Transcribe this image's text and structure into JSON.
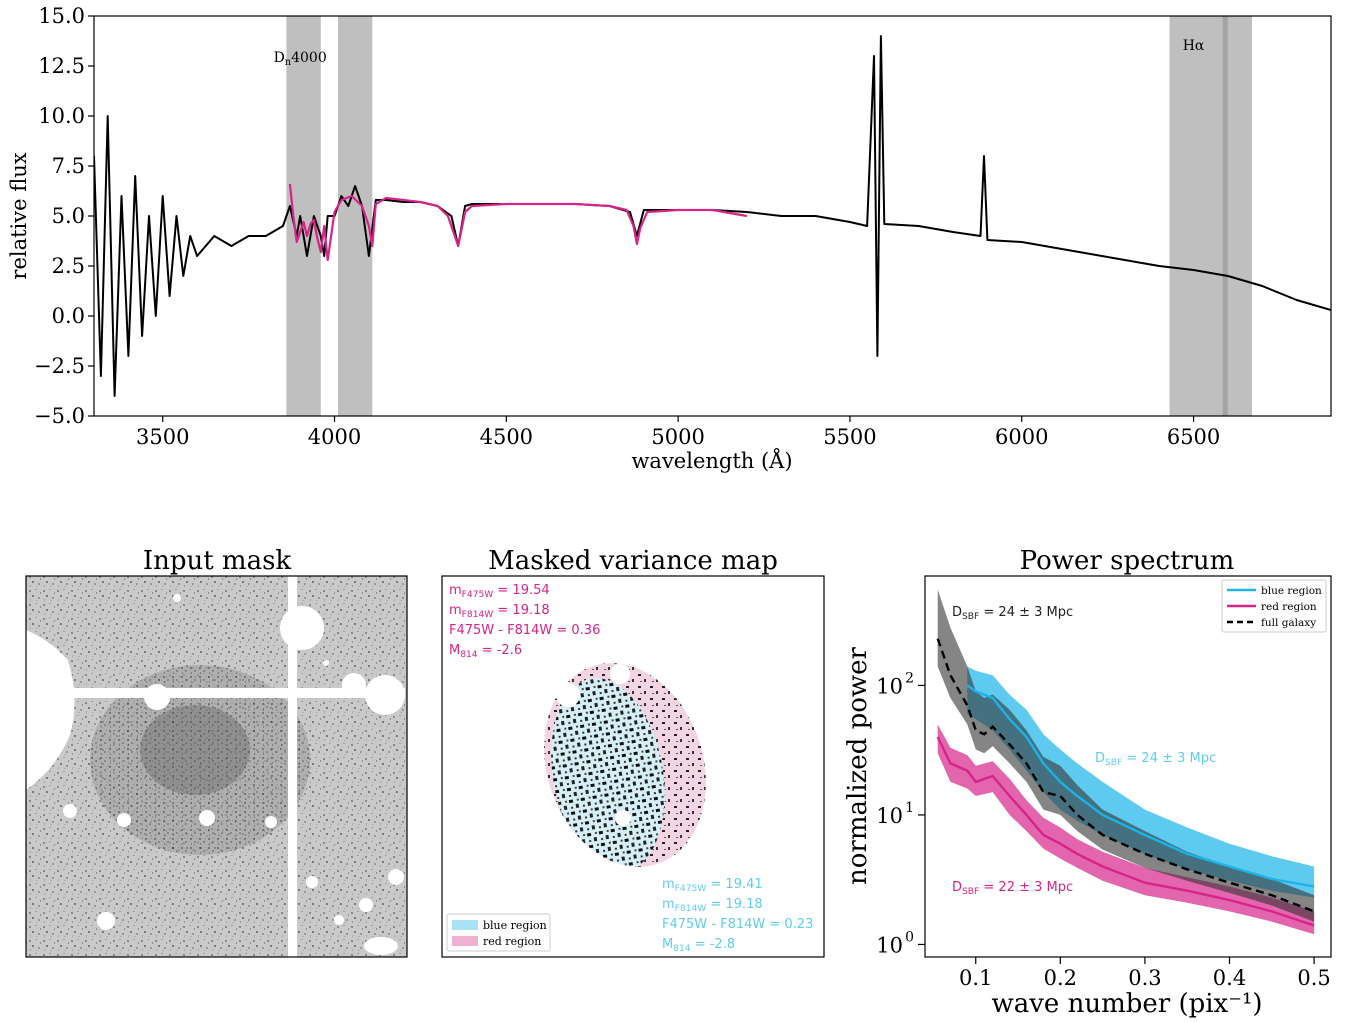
{
  "chart_data": [
    {
      "type": "line",
      "xlabel": "wavelength (Å)",
      "ylabel": "relative flux",
      "xlim": [
        3300,
        6900
      ],
      "ylim": [
        -5.0,
        15.0
      ],
      "xticks": [
        "3500",
        "4000",
        "4500",
        "5000",
        "5500",
        "6000",
        "6500"
      ],
      "yticks": [
        "−5.0",
        "−2.5",
        "0.0",
        "2.5",
        "5.0",
        "7.5",
        "10.0",
        "12.5",
        "15.0"
      ],
      "bands": [
        {
          "x0": 3860,
          "x1": 3960
        },
        {
          "x0": 4010,
          "x1": 4110
        },
        {
          "x0": 6430,
          "x1": 6670
        }
      ],
      "band_labels": [
        {
          "prefix": "D",
          "sub": "n",
          "suffix": "4000",
          "x": 3900,
          "y": 12.7
        },
        {
          "prefix": "Hα",
          "sub": "",
          "suffix": "",
          "x": 6500,
          "y": 13.3
        }
      ],
      "series": [
        {
          "color": "#000000",
          "x": [
            3300,
            3320,
            3340,
            3360,
            3380,
            3400,
            3420,
            3440,
            3460,
            3480,
            3500,
            3520,
            3540,
            3560,
            3580,
            3600,
            3650,
            3700,
            3750,
            3800,
            3850,
            3870,
            3890,
            3900,
            3920,
            3940,
            3960,
            3970,
            3980,
            4000,
            4020,
            4040,
            4060,
            4080,
            4100,
            4120,
            4150,
            4200,
            4250,
            4300,
            4340,
            4360,
            4380,
            4400,
            4500,
            4600,
            4700,
            4800,
            4860,
            4880,
            4900,
            5000,
            5100,
            5200,
            5300,
            5400,
            5500,
            5550,
            5570,
            5580,
            5590,
            5600,
            5700,
            5800,
            5880,
            5890,
            5900,
            6000,
            6100,
            6200,
            6300,
            6400,
            6500,
            6600,
            6700,
            6800,
            6900
          ],
          "y": [
            8,
            -3,
            10,
            -4,
            6,
            -2,
            7,
            -1,
            5,
            0,
            6,
            1,
            5,
            2,
            4,
            3,
            4,
            3.5,
            4,
            4,
            4.5,
            5.5,
            4,
            5,
            3,
            5,
            4,
            3,
            5,
            5,
            6,
            5.5,
            6.5,
            5.5,
            3,
            5.8,
            5.8,
            5.7,
            5.7,
            5.5,
            5,
            3.5,
            5.5,
            5.6,
            5.6,
            5.6,
            5.6,
            5.5,
            5.2,
            4,
            5.3,
            5.3,
            5.3,
            5.2,
            5,
            5,
            4.7,
            4.5,
            13,
            -2,
            14,
            4.6,
            4.5,
            4.2,
            4,
            8,
            3.8,
            3.7,
            3.4,
            3.1,
            2.8,
            2.5,
            2.3,
            2,
            1.5,
            0.8,
            0.3
          ]
        },
        {
          "color": "#d6248a",
          "x": [
            3870,
            3880,
            3890,
            3900,
            3910,
            3920,
            3930,
            3940,
            3950,
            3960,
            3970,
            3980,
            4000,
            4020,
            4050,
            4080,
            4100,
            4110,
            4120,
            4150,
            4200,
            4250,
            4300,
            4330,
            4350,
            4360,
            4380,
            4400,
            4500,
            4600,
            4700,
            4800,
            4850,
            4870,
            4880,
            4890,
            4910,
            5000,
            5100,
            5200
          ],
          "y": [
            6.6,
            5,
            3.7,
            4.2,
            4.7,
            4.0,
            4.6,
            4.8,
            3.9,
            3.2,
            4.5,
            2.8,
            5.2,
            5.8,
            6.0,
            5.5,
            4.5,
            3.5,
            5.6,
            5.9,
            5.8,
            5.7,
            5.5,
            5.0,
            4.0,
            3.5,
            5.2,
            5.5,
            5.6,
            5.6,
            5.6,
            5.5,
            5.3,
            4.5,
            3.6,
            4.4,
            5.2,
            5.3,
            5.3,
            5.0
          ]
        }
      ]
    },
    {
      "type": "image",
      "title": "Input mask"
    },
    {
      "type": "image",
      "title": "Masked variance map",
      "annotations_red": [
        {
          "pre": "m",
          "sub": "F475W",
          "post": " = 19.54"
        },
        {
          "pre": "m",
          "sub": "F814W",
          "post": " = 19.18"
        },
        {
          "pre": "F475W - F814W",
          "sub": "",
          "post": " = 0.36"
        },
        {
          "pre": "M",
          "sub": "814",
          "post": " = -2.6"
        }
      ],
      "annotations_blue": [
        {
          "pre": "m",
          "sub": "F475W",
          "post": " = 19.41"
        },
        {
          "pre": "m",
          "sub": "F814W",
          "post": " = 19.18"
        },
        {
          "pre": "F475W - F814W",
          "sub": "",
          "post": " = 0.23"
        },
        {
          "pre": "M",
          "sub": "814",
          "post": " = -2.8"
        }
      ],
      "legend": [
        {
          "name": "blue region",
          "color": "#a8e2f4"
        },
        {
          "name": "red region",
          "color": "#f0b0d2"
        }
      ]
    },
    {
      "type": "line",
      "title": "Power spectrum",
      "xlabel": "wave number (pix⁻¹)",
      "ylabel": "normalized power",
      "yscale": "log",
      "xlim": [
        0.04,
        0.52
      ],
      "ylim": [
        0.8,
        700
      ],
      "xticks": [
        "0.1",
        "0.2",
        "0.3",
        "0.4",
        "0.5"
      ],
      "yticks": [
        {
          "base": "10",
          "exp": "0"
        },
        {
          "base": "10",
          "exp": "1"
        },
        {
          "base": "10",
          "exp": "2"
        }
      ],
      "series": [
        {
          "name": "blue region",
          "color": "#1bb3e8",
          "x": [
            0.09,
            0.1,
            0.12,
            0.14,
            0.16,
            0.18,
            0.2,
            0.22,
            0.25,
            0.3,
            0.35,
            0.4,
            0.45,
            0.5
          ],
          "y": [
            100,
            90,
            80,
            55,
            40,
            25,
            18,
            14,
            10,
            7,
            5,
            4,
            3.2,
            2.8
          ],
          "y_low": [
            60,
            55,
            45,
            32,
            22,
            15,
            11,
            9,
            7,
            5,
            3.8,
            3.1,
            2.6,
            2.3
          ],
          "y_high": [
            140,
            130,
            120,
            85,
            65,
            42,
            32,
            25,
            18,
            11,
            8,
            6,
            4.8,
            4
          ]
        },
        {
          "name": "red region",
          "color": "#d6248a",
          "x": [
            0.055,
            0.07,
            0.09,
            0.1,
            0.12,
            0.14,
            0.16,
            0.18,
            0.2,
            0.22,
            0.25,
            0.3,
            0.35,
            0.4,
            0.45,
            0.5
          ],
          "y": [
            40,
            25,
            22,
            18,
            20,
            14,
            10,
            7,
            6,
            5,
            4,
            3,
            2.6,
            2.2,
            1.8,
            1.4
          ],
          "y_low": [
            30,
            18,
            16,
            14,
            15,
            10,
            7.5,
            5.5,
            4.6,
            3.9,
            3.1,
            2.4,
            2.1,
            1.8,
            1.5,
            1.2
          ],
          "y_high": [
            50,
            33,
            29,
            24,
            26,
            19,
            13,
            9.5,
            8,
            6.5,
            5.2,
            3.9,
            3.3,
            2.8,
            2.3,
            1.8
          ]
        },
        {
          "name": "full galaxy",
          "color": "#000000",
          "x": [
            0.055,
            0.07,
            0.09,
            0.1,
            0.11,
            0.12,
            0.14,
            0.16,
            0.18,
            0.2,
            0.22,
            0.25,
            0.3,
            0.35,
            0.4,
            0.45,
            0.5
          ],
          "y": [
            230,
            120,
            70,
            45,
            42,
            48,
            35,
            25,
            15,
            14,
            10,
            7,
            5,
            3.8,
            3,
            2.4,
            1.8
          ],
          "y_low": [
            140,
            80,
            50,
            32,
            30,
            34,
            25,
            18,
            11,
            10,
            7.5,
            5.4,
            3.9,
            3.1,
            2.5,
            2,
            1.5
          ],
          "y_high": [
            550,
            280,
            140,
            90,
            80,
            85,
            65,
            45,
            28,
            24,
            17,
            11,
            7.5,
            5.2,
            4,
            3.2,
            2.4
          ]
        }
      ],
      "annotations": [
        {
          "pre": "D",
          "sub": "SBF",
          "post": " = 24 ± 3 Mpc",
          "color": "#222222"
        },
        {
          "pre": "D",
          "sub": "SBF",
          "post": " = 24 ± 3 Mpc",
          "color": "#5fcdf1"
        },
        {
          "pre": "D",
          "sub": "SBF",
          "post": " = 22 ± 3 Mpc",
          "color": "#d6248a"
        }
      ]
    }
  ]
}
